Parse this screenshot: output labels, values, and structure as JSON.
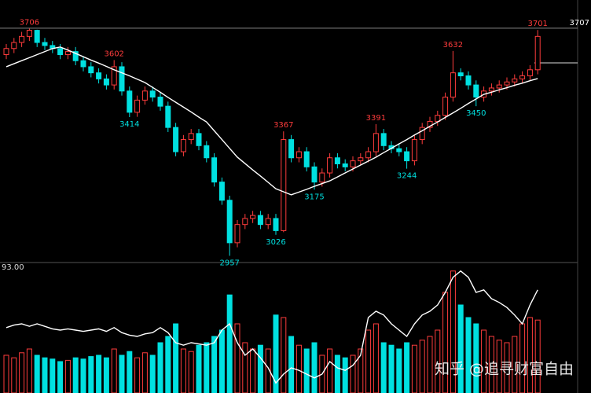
{
  "chart_data": {
    "type": "candlestick",
    "up_color": "#ff3c3c",
    "down_color": "#00e0e0",
    "ma_color": "#ffffff",
    "indicator_color": "#ffffff",
    "ref_line": 3707,
    "lower_panel_label": "93.00",
    "watermark": "知乎 @追寻财富自由",
    "ylim": [
      2940,
      3800
    ],
    "vol_lim": [
      0,
      100
    ],
    "open": [
      3620,
      3640,
      3660,
      3680,
      3700,
      3660,
      3650,
      3640,
      3620,
      3630,
      3600,
      3580,
      3560,
      3540,
      3520,
      3580,
      3500,
      3430,
      3470,
      3500,
      3480,
      3450,
      3380,
      3300,
      3340,
      3360,
      3320,
      3280,
      3200,
      3140,
      3000,
      3060,
      3080,
      3090,
      3060,
      3080,
      3040,
      3340,
      3280,
      3300,
      3250,
      3200,
      3230,
      3280,
      3260,
      3250,
      3270,
      3280,
      3300,
      3360,
      3320,
      3310,
      3300,
      3270,
      3340,
      3380,
      3400,
      3420,
      3480,
      3560,
      3550,
      3520,
      3480,
      3500,
      3510,
      3520,
      3530,
      3540,
      3550,
      3570
    ],
    "close": [
      3640,
      3660,
      3680,
      3700,
      3660,
      3650,
      3640,
      3620,
      3630,
      3600,
      3580,
      3560,
      3540,
      3520,
      3580,
      3500,
      3430,
      3470,
      3500,
      3480,
      3450,
      3380,
      3300,
      3340,
      3360,
      3320,
      3280,
      3200,
      3140,
      3000,
      3060,
      3080,
      3090,
      3060,
      3080,
      3040,
      3340,
      3280,
      3300,
      3250,
      3200,
      3230,
      3280,
      3260,
      3250,
      3270,
      3280,
      3300,
      3360,
      3320,
      3310,
      3300,
      3270,
      3340,
      3380,
      3400,
      3420,
      3480,
      3560,
      3550,
      3520,
      3480,
      3500,
      3510,
      3520,
      3530,
      3540,
      3550,
      3570,
      3680
    ],
    "high": [
      3655,
      3675,
      3695,
      3706,
      3702,
      3675,
      3665,
      3655,
      3645,
      3645,
      3615,
      3595,
      3575,
      3555,
      3602,
      3595,
      3515,
      3485,
      3515,
      3515,
      3495,
      3465,
      3395,
      3355,
      3375,
      3375,
      3335,
      3295,
      3215,
      3155,
      3075,
      3095,
      3105,
      3105,
      3095,
      3095,
      3367,
      3355,
      3315,
      3315,
      3265,
      3245,
      3295,
      3295,
      3275,
      3285,
      3295,
      3315,
      3391,
      3375,
      3335,
      3325,
      3315,
      3355,
      3395,
      3415,
      3435,
      3495,
      3632,
      3575,
      3565,
      3535,
      3515,
      3525,
      3535,
      3545,
      3555,
      3565,
      3585,
      3701
    ],
    "low": [
      3605,
      3625,
      3645,
      3665,
      3645,
      3635,
      3625,
      3605,
      3605,
      3585,
      3565,
      3545,
      3525,
      3505,
      3505,
      3485,
      3414,
      3415,
      3455,
      3465,
      3435,
      3365,
      3285,
      3285,
      3325,
      3305,
      3265,
      3185,
      3125,
      2957,
      2985,
      3045,
      3065,
      3045,
      3045,
      3026,
      3035,
      3265,
      3265,
      3235,
      3175,
      3185,
      3215,
      3245,
      3235,
      3235,
      3255,
      3265,
      3285,
      3305,
      3295,
      3285,
      3244,
      3255,
      3325,
      3365,
      3385,
      3405,
      3465,
      3535,
      3505,
      3450,
      3465,
      3485,
      3495,
      3505,
      3515,
      3525,
      3535,
      3555
    ],
    "ma": [
      3580,
      3590,
      3600,
      3610,
      3620,
      3630,
      3640,
      3645,
      3635,
      3624,
      3613,
      3602,
      3592,
      3581,
      3570,
      3560,
      3550,
      3539,
      3528,
      3512,
      3496,
      3479,
      3463,
      3447,
      3431,
      3414,
      3398,
      3369,
      3340,
      3311,
      3282,
      3261,
      3240,
      3220,
      3199,
      3178,
      3168,
      3158,
      3167,
      3176,
      3186,
      3195,
      3204,
      3217,
      3230,
      3243,
      3256,
      3269,
      3282,
      3297,
      3311,
      3326,
      3340,
      3355,
      3369,
      3384,
      3398,
      3413,
      3428,
      3443,
      3459,
      3474,
      3489,
      3496,
      3504,
      3511,
      3519,
      3526,
      3534,
      3541
    ],
    "volume": [
      30,
      28,
      32,
      35,
      30,
      28,
      27,
      25,
      26,
      28,
      27,
      29,
      30,
      28,
      35,
      30,
      33,
      28,
      32,
      30,
      40,
      45,
      55,
      35,
      33,
      38,
      40,
      45,
      50,
      78,
      55,
      40,
      35,
      38,
      35,
      62,
      60,
      45,
      38,
      35,
      40,
      30,
      35,
      30,
      28,
      30,
      35,
      50,
      55,
      40,
      38,
      35,
      40,
      38,
      42,
      45,
      50,
      80,
      97,
      70,
      60,
      55,
      50,
      45,
      42,
      40,
      45,
      55,
      60,
      58
    ],
    "indicator": [
      52,
      54,
      55,
      53,
      55,
      53,
      51,
      50,
      51,
      50,
      49,
      50,
      51,
      49,
      52,
      48,
      46,
      45,
      47,
      48,
      52,
      48,
      40,
      38,
      40,
      39,
      38,
      40,
      50,
      55,
      40,
      30,
      35,
      28,
      20,
      8,
      15,
      20,
      18,
      15,
      12,
      15,
      25,
      20,
      18,
      22,
      30,
      60,
      65,
      62,
      55,
      50,
      45,
      55,
      62,
      65,
      70,
      80,
      92,
      97,
      92,
      80,
      82,
      75,
      72,
      68,
      62,
      55,
      70,
      82
    ],
    "marked_highs": [
      3,
      14,
      36,
      48,
      58,
      69
    ],
    "marked_lows": [
      16,
      29,
      35,
      40,
      52,
      61
    ]
  }
}
